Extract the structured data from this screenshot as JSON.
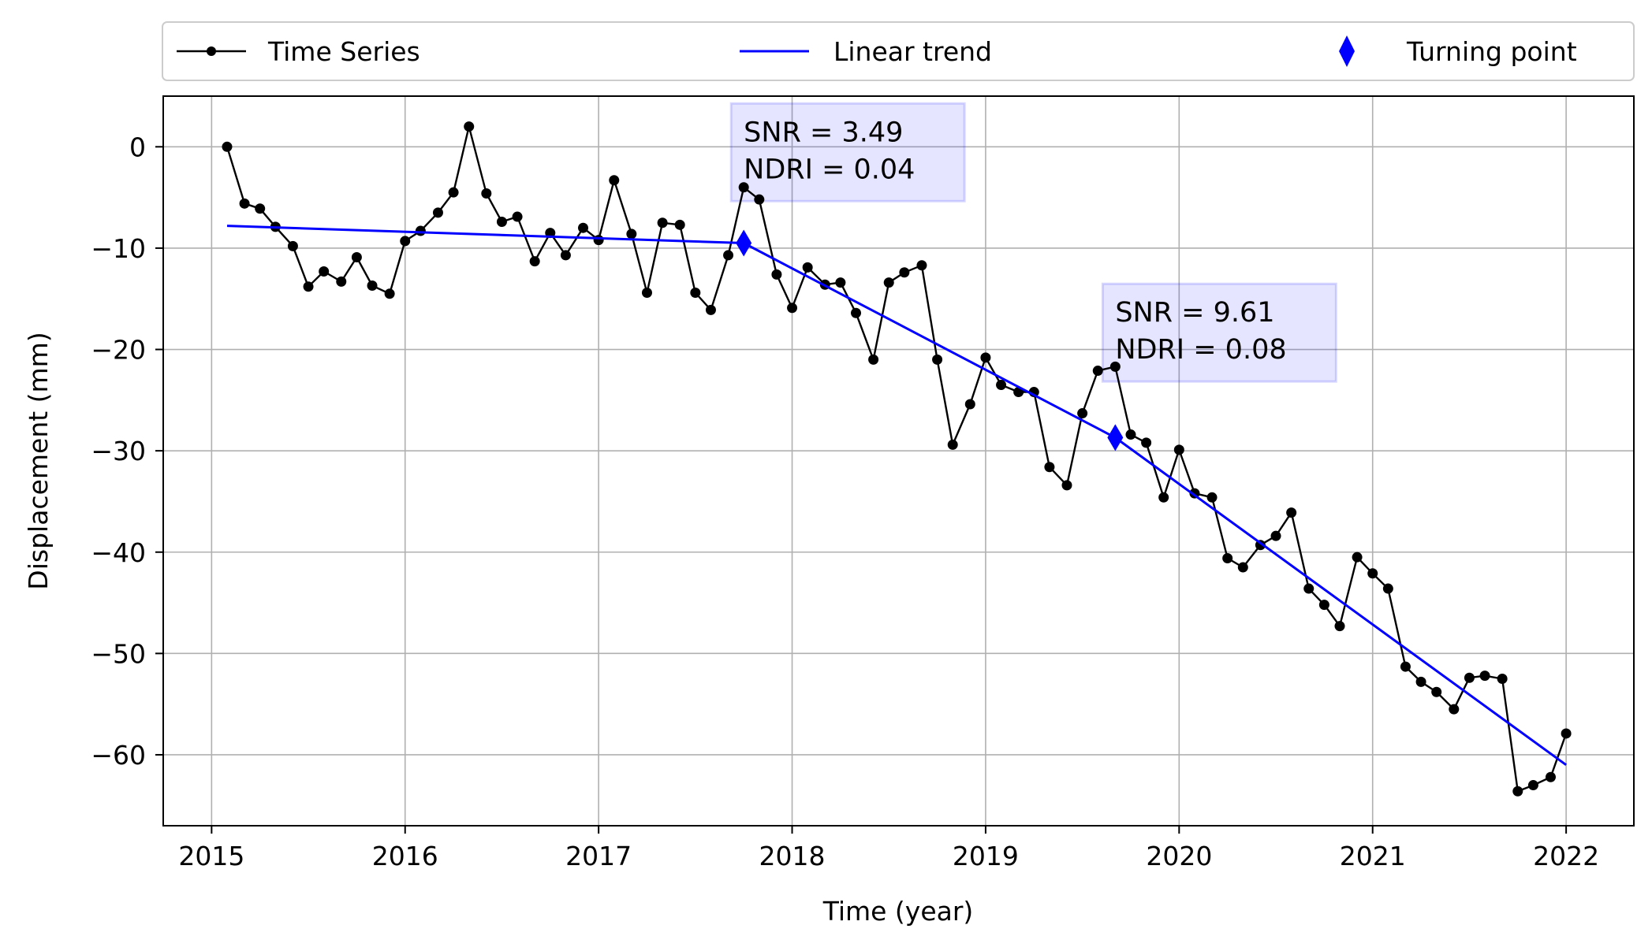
{
  "chart_data": {
    "type": "line",
    "xlabel": "Time (year)",
    "ylabel": "Displacement (mm)",
    "xlim": [
      2014.75,
      2022.35
    ],
    "ylim": [
      -67,
      5
    ],
    "grid": true,
    "legend_position": "top, outside plot, spanning full width",
    "x_ticks": [
      2015,
      2016,
      2017,
      2018,
      2019,
      2020,
      2021,
      2022
    ],
    "x_tick_labels": [
      "2015",
      "2016",
      "2017",
      "2018",
      "2019",
      "2020",
      "2021",
      "2022"
    ],
    "y_ticks": [
      0,
      -10,
      -20,
      -30,
      -40,
      -50,
      -60
    ],
    "y_tick_labels": [
      "0",
      "−10",
      "−20",
      "−30",
      "−40",
      "−50",
      "−60"
    ],
    "legend": [
      {
        "label": "Time Series",
        "color": "#000000",
        "marker": "dot-line"
      },
      {
        "label": "Linear trend",
        "color": "#0000ff",
        "marker": "line"
      },
      {
        "label": "Turning point",
        "color": "#0000ff",
        "marker": "diamond"
      }
    ],
    "series": [
      {
        "name": "Time Series",
        "color": "#000000",
        "x": [
          2015.08,
          2015.17,
          2015.25,
          2015.33,
          2015.42,
          2015.5,
          2015.58,
          2015.67,
          2015.75,
          2015.83,
          2015.92,
          2016.0,
          2016.08,
          2016.17,
          2016.25,
          2016.33,
          2016.42,
          2016.5,
          2016.58,
          2016.67,
          2016.75,
          2016.83,
          2016.92,
          2017.0,
          2017.08,
          2017.17,
          2017.25,
          2017.33,
          2017.42,
          2017.5,
          2017.58,
          2017.67,
          2017.75,
          2017.83,
          2017.92,
          2018.0,
          2018.08,
          2018.17,
          2018.25,
          2018.33,
          2018.42,
          2018.5,
          2018.58,
          2018.67,
          2018.75,
          2018.83,
          2018.92,
          2019.0,
          2019.08,
          2019.17,
          2019.25,
          2019.33,
          2019.42,
          2019.5,
          2019.58,
          2019.67,
          2019.75,
          2019.83,
          2019.92,
          2020.0,
          2020.08,
          2020.17,
          2020.25,
          2020.33,
          2020.42,
          2020.5,
          2020.58,
          2020.67,
          2020.75,
          2020.83,
          2020.92,
          2021.0,
          2021.08,
          2021.17,
          2021.25,
          2021.33,
          2021.42,
          2021.5,
          2021.58,
          2021.67,
          2021.75,
          2021.83,
          2021.92,
          2022.0
        ],
        "y": [
          0.0,
          -5.6,
          -6.1,
          -7.9,
          -9.8,
          -13.8,
          -12.3,
          -13.3,
          -10.9,
          -13.7,
          -14.5,
          -9.3,
          -8.3,
          -6.5,
          -4.5,
          2.0,
          -4.6,
          -7.4,
          -6.9,
          -11.3,
          -8.5,
          -10.7,
          -8.0,
          -9.2,
          -3.3,
          -8.6,
          -14.4,
          -7.5,
          -7.7,
          -14.4,
          -16.1,
          -10.7,
          -4.0,
          -5.2,
          -12.6,
          -15.9,
          -11.9,
          -13.6,
          -13.4,
          -16.4,
          -21.0,
          -13.4,
          -12.4,
          -11.7,
          -21.0,
          -29.4,
          -25.4,
          -20.8,
          -23.5,
          -24.2,
          -24.2,
          -31.6,
          -33.4,
          -26.3,
          -22.1,
          -21.7,
          -28.4,
          -29.2,
          -34.6,
          -29.9,
          -34.2,
          -34.6,
          -40.6,
          -41.5,
          -39.3,
          -38.4,
          -36.1,
          -43.6,
          -45.2,
          -47.3,
          -40.5,
          -42.1,
          -43.6,
          -51.3,
          -52.8,
          -53.8,
          -55.5,
          -52.4,
          -52.2,
          -52.5,
          -63.6,
          -63.0,
          -62.2,
          -57.9
        ]
      },
      {
        "name": "Linear trend",
        "color": "#0000ff",
        "x": [
          2015.08,
          2017.75,
          2019.67,
          2022.0
        ],
        "y": [
          -7.8,
          -9.5,
          -28.7,
          -61.0
        ]
      }
    ],
    "turning_points": [
      {
        "x": 2017.75,
        "y": -9.5
      },
      {
        "x": 2019.67,
        "y": -28.7
      }
    ],
    "annotations": [
      {
        "lines": [
          "SNR = 3.49",
          "NDRI = 0.04"
        ],
        "x": 2017.75,
        "y": 3.5
      },
      {
        "lines": [
          "SNR = 9.61",
          "NDRI = 0.08"
        ],
        "x": 2019.67,
        "y": -14.3
      }
    ]
  }
}
